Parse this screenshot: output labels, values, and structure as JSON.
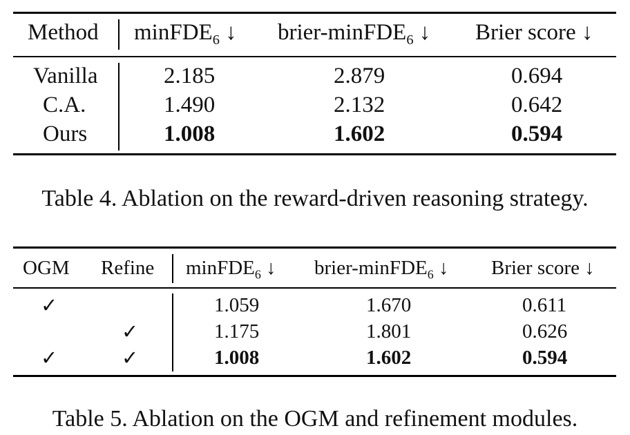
{
  "table4": {
    "headers": {
      "method": "Method",
      "minfde_main": "minFDE",
      "minfde_sub": "6",
      "minfde_arrow": "↓",
      "brier_minfde_main": "brier-minFDE",
      "brier_minfde_sub": "6",
      "brier_minfde_arrow": "↓",
      "brier_score": "Brier score ↓"
    },
    "rows": [
      {
        "method": "Vanilla",
        "minfde": "2.185",
        "brier_minfde": "2.879",
        "brier_score": "0.694"
      },
      {
        "method": "C.A.",
        "minfde": "1.490",
        "brier_minfde": "2.132",
        "brier_score": "0.642"
      },
      {
        "method": "Ours",
        "minfde": "1.008",
        "brier_minfde": "1.602",
        "brier_score": "0.594"
      }
    ],
    "caption": "Table 4. Ablation on the reward-driven reasoning strategy."
  },
  "table5": {
    "headers": {
      "ogm": "OGM",
      "refine": "Refine",
      "minfde_main": "minFDE",
      "minfde_sub": "6",
      "minfde_arrow": "↓",
      "brier_minfde_main": "brier-minFDE",
      "brier_minfde_sub": "6",
      "brier_minfde_arrow": "↓",
      "brier_score": "Brier score ↓"
    },
    "check_symbol": "✓",
    "rows": [
      {
        "ogm": "✓",
        "refine": "",
        "minfde": "1.059",
        "brier_minfde": "1.670",
        "brier_score": "0.611"
      },
      {
        "ogm": "",
        "refine": "✓",
        "minfde": "1.175",
        "brier_minfde": "1.801",
        "brier_score": "0.626"
      },
      {
        "ogm": "✓",
        "refine": "✓",
        "minfde": "1.008",
        "brier_minfde": "1.602",
        "brier_score": "0.594"
      }
    ],
    "caption": "Table 5. Ablation on the OGM and refinement modules."
  }
}
